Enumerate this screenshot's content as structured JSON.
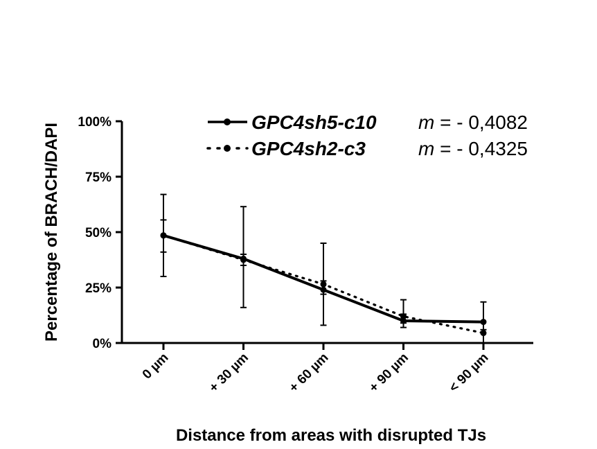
{
  "chart_data": {
    "type": "line",
    "xlabel": "Distance from areas with disrupted TJs",
    "ylabel": "Percentage of BRACH/DAPI",
    "categories": [
      "0 µm",
      "+ 30 µm",
      "+ 60 µm",
      "+ 90 µm",
      "< 90 µm"
    ],
    "yticks": [
      "0%",
      "25%",
      "50%",
      "75%",
      "100%"
    ],
    "ylim": [
      0,
      100
    ],
    "grid": false,
    "legend_position": "top-right",
    "series": [
      {
        "name": "GPC4sh5-c10",
        "slope_prefix": "m",
        "slope_value": " = - 0,4082",
        "line_style": "solid",
        "color": "#000000",
        "values": [
          48.5,
          38.0,
          24.0,
          10.0,
          9.5
        ],
        "err_low": [
          30.0,
          16.0,
          8.0,
          7.0,
          0.0
        ],
        "err_high": [
          67.0,
          61.5,
          45.0,
          13.0,
          18.5
        ]
      },
      {
        "name": "GPC4sh2-c3",
        "slope_prefix": "m",
        "slope_value": " = - 0,4325",
        "line_style": "dotted",
        "color": "#000000",
        "values": [
          48.5,
          37.5,
          26.5,
          12.0,
          4.5
        ],
        "err_low": [
          41.0,
          35.0,
          22.0,
          9.0,
          0.0
        ],
        "err_high": [
          55.5,
          40.0,
          28.0,
          19.5,
          6.0
        ]
      }
    ]
  }
}
